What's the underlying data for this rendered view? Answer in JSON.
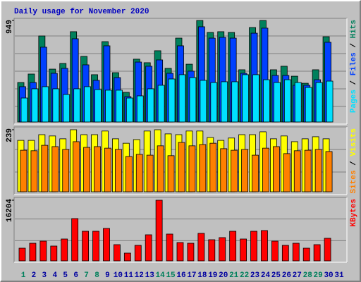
{
  "title": "Daily usage for November 2020",
  "legend_separator": " / ",
  "categories": [
    "1",
    "2",
    "3",
    "4",
    "5",
    "6",
    "7",
    "8",
    "9",
    "10",
    "11",
    "12",
    "13",
    "14",
    "15",
    "16",
    "17",
    "18",
    "19",
    "20",
    "21",
    "22",
    "23",
    "24",
    "25",
    "26",
    "27",
    "28",
    "29",
    "30",
    "31"
  ],
  "weekend_indices": [
    0,
    6,
    7,
    13,
    14,
    20,
    21,
    27,
    28
  ],
  "weekend_color": "#00805c",
  "weekday_color": "#0000a0",
  "chart_data": [
    {
      "type": "bar",
      "ylim": [
        0,
        949
      ],
      "yticks": [
        949
      ],
      "series": [
        {
          "name": "Pages",
          "color": "#00e0ff",
          "values": [
            224,
            310,
            330,
            310,
            257,
            310,
            330,
            303,
            297,
            297,
            224,
            244,
            310,
            343,
            402,
            442,
            415,
            389,
            369,
            376,
            376,
            442,
            442,
            395,
            369,
            395,
            369,
            323,
            369,
            382,
            null
          ]
        },
        {
          "name": "Files",
          "color": "#0040ff",
          "values": [
            330,
            369,
            699,
            455,
            501,
            778,
            534,
            389,
            712,
            415,
            237,
            560,
            521,
            580,
            455,
            712,
            475,
            890,
            784,
            791,
            784,
            455,
            830,
            877,
            435,
            435,
            343,
            343,
            395,
            745,
            null
          ]
        },
        {
          "name": "Hits",
          "color": "#00805c",
          "values": [
            369,
            448,
            804,
            494,
            547,
            844,
            613,
            442,
            751,
            461,
            277,
            587,
            554,
            666,
            501,
            784,
            540,
            949,
            837,
            844,
            837,
            488,
            883,
            949,
            488,
            521,
            428,
            362,
            488,
            797,
            null
          ]
        }
      ]
    },
    {
      "type": "bar",
      "ylim": [
        0,
        239
      ],
      "yticks": [
        239
      ],
      "series": [
        {
          "name": "Sites",
          "color": "#ff8000",
          "values": [
            160,
            158,
            179,
            174,
            163,
            193,
            171,
            174,
            168,
            163,
            136,
            144,
            141,
            177,
            139,
            190,
            177,
            182,
            187,
            166,
            160,
            163,
            141,
            168,
            174,
            147,
            158,
            160,
            163,
            155,
            null
          ]
        },
        {
          "name": "Visits",
          "color": "#ffff00",
          "values": [
            198,
            198,
            220,
            215,
            204,
            239,
            220,
            220,
            234,
            204,
            187,
            201,
            234,
            239,
            223,
            220,
            234,
            234,
            209,
            198,
            207,
            220,
            220,
            231,
            204,
            215,
            193,
            204,
            212,
            204,
            null
          ]
        }
      ]
    },
    {
      "type": "bar",
      "ylim": [
        0,
        16204
      ],
      "yticks": [
        16204
      ],
      "series": [
        {
          "name": "KBytes",
          "color": "#ff0000",
          "values": [
            3392,
            4710,
            5276,
            3957,
            5841,
            11305,
            7914,
            7914,
            8667,
            4334,
            2073,
            4145,
            6972,
            16204,
            7160,
            4899,
            4710,
            7349,
            5653,
            6218,
            7914,
            5841,
            7914,
            8102,
            5276,
            4145,
            4710,
            3392,
            4334,
            6030,
            null
          ]
        }
      ]
    }
  ]
}
